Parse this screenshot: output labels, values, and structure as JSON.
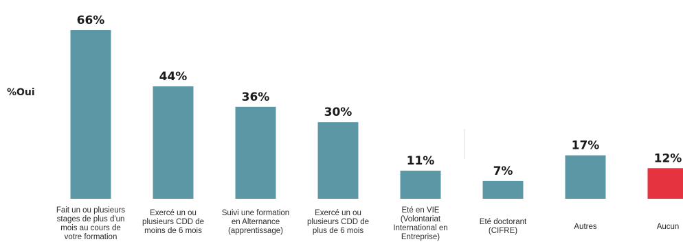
{
  "chart_data": {
    "type": "bar",
    "ylabel": "%Oui",
    "categories": [
      [
        "Fait un ou plusieurs",
        "stages de plus d'un",
        "mois au cours de",
        "votre formation"
      ],
      [
        "Exercé un ou",
        "plusieurs CDD de",
        "moins de 6 mois"
      ],
      [
        "Suivi une formation",
        "en Alternance",
        "(apprentissage)"
      ],
      [
        "Exercé un ou",
        "plusieurs CDD de",
        "plus de 6 mois"
      ],
      [
        "Eté en VIE",
        "(Volontariat",
        "International en",
        "Entreprise)"
      ],
      [
        "Eté doctorant",
        "(CIFRE)"
      ],
      [
        "Autres"
      ],
      [
        "Aucun"
      ]
    ],
    "values": [
      66,
      44,
      36,
      30,
      11,
      7,
      17,
      12
    ],
    "value_labels": [
      "66%",
      "44%",
      "36%",
      "30%",
      "11%",
      "7%",
      "17%",
      "12%"
    ],
    "unit": "%",
    "colors": [
      "#5b97a5",
      "#5b97a5",
      "#5b97a5",
      "#5b97a5",
      "#5b97a5",
      "#5b97a5",
      "#5b97a5",
      "#e5333f"
    ],
    "ylim": [
      0,
      66
    ],
    "grid": false,
    "legend": "none"
  }
}
